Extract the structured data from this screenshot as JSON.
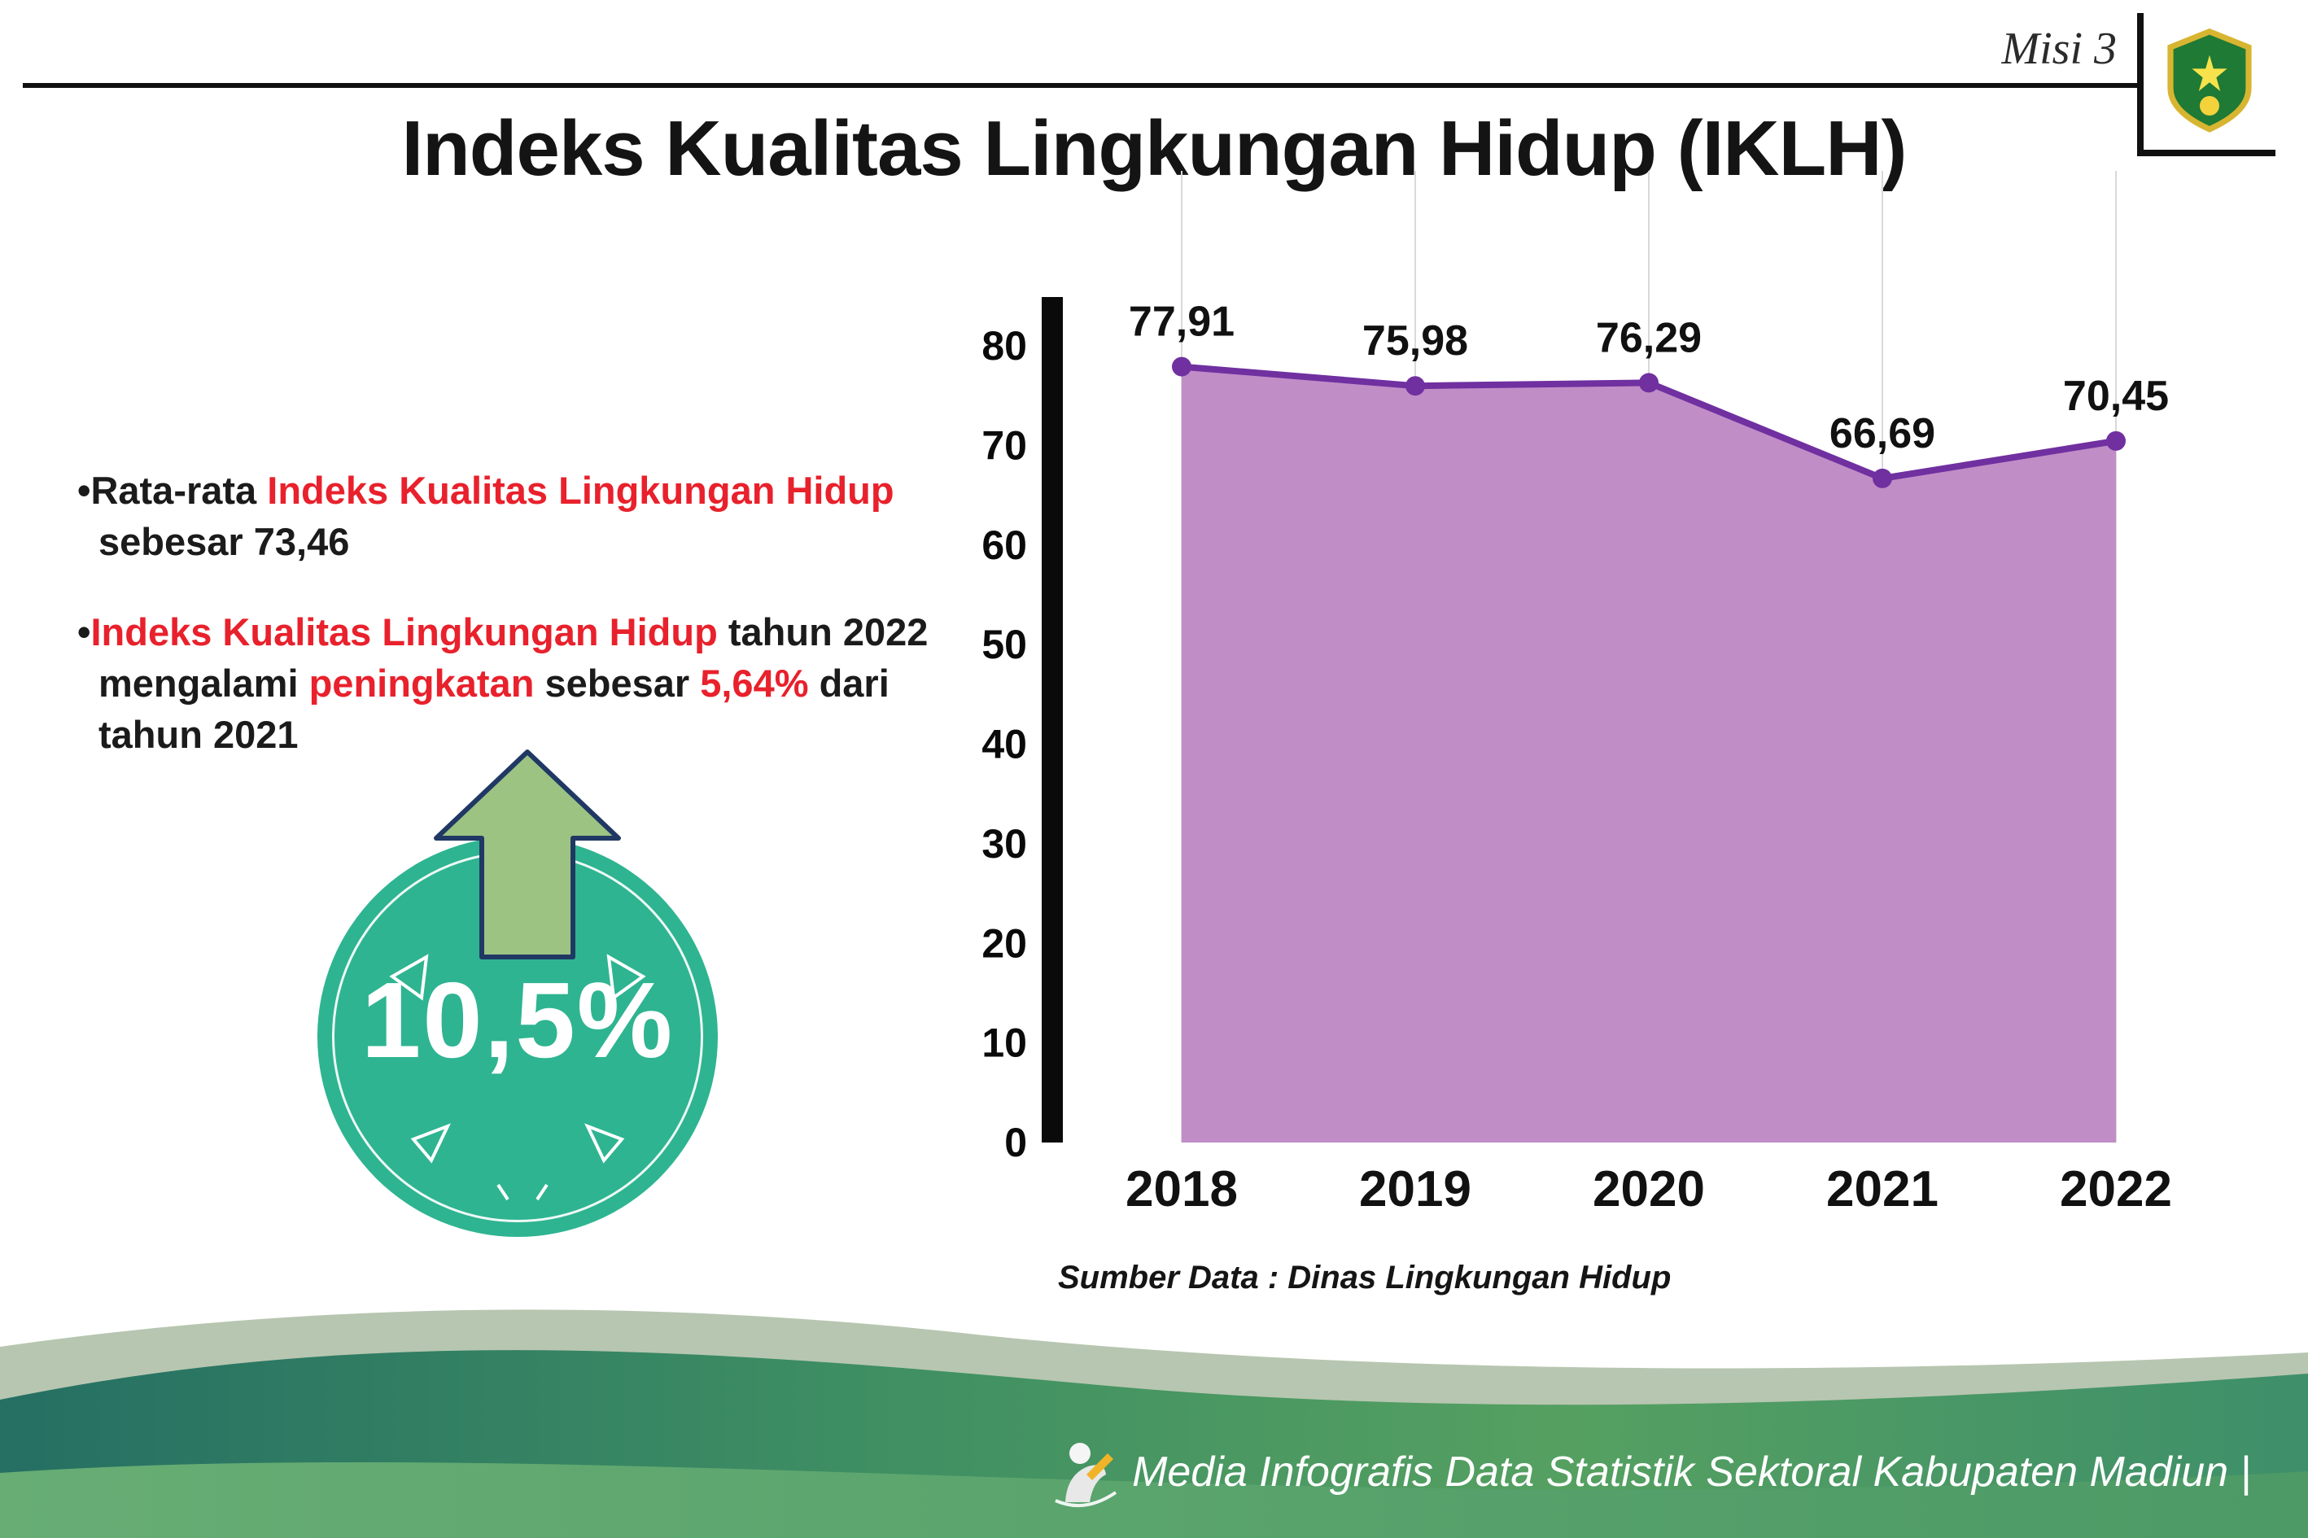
{
  "header": {
    "misi_label": "Misi 3",
    "title": "Indeks Kualitas Lingkungan Hidup (IKLH)",
    "logo": "kabupaten-madiun-crest"
  },
  "bullets": [
    {
      "segments": [
        {
          "text": "•Rata-rata "
        },
        {
          "text": "Indeks Kualitas Lingkungan Hidup"
        },
        {
          "text": " sebesar 73,46"
        }
      ]
    },
    {
      "segments": [
        {
          "text": "•"
        },
        {
          "text": "Indeks Kualitas Lingkungan Hidup"
        },
        {
          "text": " tahun 2022 mengalami "
        },
        {
          "text": "peningkatan"
        },
        {
          "text": " sebesar "
        },
        {
          "text": "5,64%"
        },
        {
          "text": " dari tahun 2021"
        }
      ]
    }
  ],
  "badge": {
    "value": "10,5%"
  },
  "chart_data": {
    "type": "area",
    "title": "Indeks Kualitas Lingkungan Hidup (IKLH)",
    "categories": [
      "2018",
      "2019",
      "2020",
      "2021",
      "2022"
    ],
    "values": [
      77.91,
      75.98,
      76.29,
      66.69,
      70.45
    ],
    "value_labels": [
      "77,91",
      "75,98",
      "76,29",
      "66,69",
      "70,45"
    ],
    "ylim": [
      0,
      80
    ],
    "yticks": [
      0,
      10,
      20,
      30,
      40,
      50,
      60,
      70,
      80
    ],
    "grid": "vertical",
    "legend": "none",
    "area_color": "#c18dc7",
    "line_color": "#7030a0",
    "source": "Sumber Data : Dinas Lingkungan Hidup"
  },
  "footer": {
    "text": "Media Infografis Data Statistik Sektoral Kabupaten Madiun |"
  },
  "colors": {
    "red_accent": "#e8212c",
    "badge_teal": "#2eb491",
    "arrow_green": "#9dc383",
    "arrow_outline": "#203864",
    "area_purple": "#c18dc7",
    "line_purple": "#7030a0"
  }
}
